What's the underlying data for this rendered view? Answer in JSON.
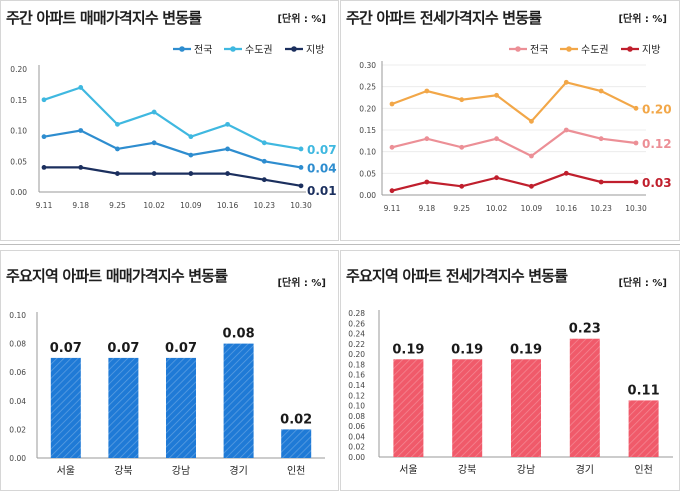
{
  "chart_data": [
    {
      "id": "top-left",
      "type": "line",
      "title": "주간 아파트 매매가격지수 변동률",
      "unit_label": "[단위 : %]",
      "categories": [
        "9.11",
        "9.18",
        "9.25",
        "10.02",
        "10.09",
        "10.16",
        "10.23",
        "10.30"
      ],
      "ylim": [
        0,
        0.2
      ],
      "yticks": [
        "0.00",
        "0.05",
        "0.10",
        "0.15",
        "0.20"
      ],
      "series": [
        {
          "name": "전국",
          "color": "#2e8dcf",
          "values": [
            0.09,
            0.1,
            0.07,
            0.08,
            0.06,
            0.07,
            0.05,
            0.04
          ],
          "end_label": "0.04"
        },
        {
          "name": "수도권",
          "color": "#3fb8e0",
          "values": [
            0.15,
            0.17,
            0.11,
            0.13,
            0.09,
            0.11,
            0.08,
            0.07
          ],
          "end_label": "0.07"
        },
        {
          "name": "지방",
          "color": "#1b2f5e",
          "values": [
            0.04,
            0.04,
            0.03,
            0.03,
            0.03,
            0.03,
            0.02,
            0.01
          ],
          "end_label": "0.01"
        }
      ]
    },
    {
      "id": "top-right",
      "type": "line",
      "title": "주간 아파트 전세가격지수 변동률",
      "unit_label": "[단위 : %]",
      "categories": [
        "9.11",
        "9.18",
        "9.25",
        "10.02",
        "10.09",
        "10.16",
        "10.23",
        "10.30"
      ],
      "ylim": [
        0,
        0.3
      ],
      "yticks": [
        "0.00",
        "0.05",
        "0.10",
        "0.15",
        "0.20",
        "0.25",
        "0.30"
      ],
      "series": [
        {
          "name": "전국",
          "color": "#ec8f96",
          "values": [
            0.11,
            0.13,
            0.11,
            0.13,
            0.09,
            0.15,
            0.13,
            0.12
          ],
          "end_label": "0.12"
        },
        {
          "name": "수도권",
          "color": "#f2a748",
          "values": [
            0.21,
            0.24,
            0.22,
            0.23,
            0.17,
            0.26,
            0.24,
            0.2
          ],
          "end_label": "0.20"
        },
        {
          "name": "지방",
          "color": "#c01f2d",
          "values": [
            0.01,
            0.03,
            0.02,
            0.04,
            0.02,
            0.05,
            0.03,
            0.03
          ],
          "end_label": "0.03"
        }
      ]
    },
    {
      "id": "bottom-left",
      "type": "bar",
      "title": "주요지역 아파트 매매가격지수 변동률",
      "unit_label": "[단위 : %]",
      "categories": [
        "서울",
        "강북",
        "강남",
        "경기",
        "인천"
      ],
      "values": [
        0.07,
        0.07,
        0.07,
        0.08,
        0.02
      ],
      "labels": [
        "0.07",
        "0.07",
        "0.07",
        "0.08",
        "0.02"
      ],
      "ylim": [
        0,
        0.1
      ],
      "yticks": [
        "0.00",
        "0.02",
        "0.04",
        "0.06",
        "0.08",
        "0.10"
      ],
      "color": "#1f7ad6"
    },
    {
      "id": "bottom-right",
      "type": "bar",
      "title": "주요지역 아파트 전세가격지수 변동률",
      "unit_label": "[단위 : %]",
      "categories": [
        "서울",
        "강북",
        "강남",
        "경기",
        "인천"
      ],
      "values": [
        0.19,
        0.19,
        0.19,
        0.23,
        0.11
      ],
      "labels": [
        "0.19",
        "0.19",
        "0.19",
        "0.23",
        "0.11"
      ],
      "ylim": [
        0,
        0.28
      ],
      "yticks": [
        "0.00",
        "0.02",
        "0.04",
        "0.06",
        "0.08",
        "0.10",
        "0.12",
        "0.14",
        "0.16",
        "0.18",
        "0.20",
        "0.22",
        "0.24",
        "0.26",
        "0.28"
      ],
      "color": "#f05a6a"
    }
  ]
}
